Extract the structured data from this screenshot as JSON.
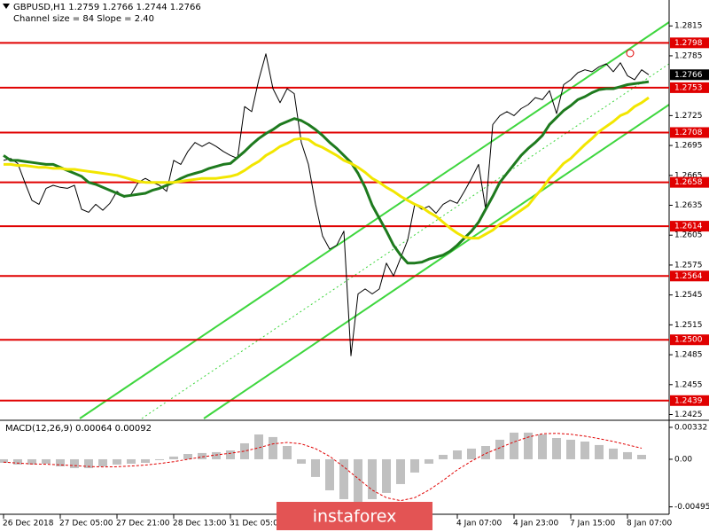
{
  "chart_data": [
    {
      "type": "line",
      "title": "GBPUSD,H1  1.2759 1.2766 1.2744 1.2766",
      "subtitle": "Channel size = 84 Slope = 2.40",
      "categories": [
        "26 Dec 2018",
        null,
        null,
        null,
        null,
        null,
        null,
        null,
        "27 Dec 05:00",
        null,
        null,
        null,
        null,
        null,
        null,
        null,
        "27 Dec 21:00",
        null,
        null,
        null,
        null,
        null,
        null,
        null,
        "28 Dec 13:00",
        null,
        null,
        null,
        null,
        null,
        null,
        null,
        "31 Dec 05:00",
        null,
        null,
        null,
        null,
        null,
        null,
        null,
        null,
        null,
        null,
        null,
        null,
        null,
        null,
        null,
        null,
        null,
        null,
        null,
        null,
        null,
        null,
        null,
        null,
        null,
        null,
        null,
        null,
        null,
        null,
        null,
        "4 Jan 07:00",
        null,
        null,
        null,
        null,
        null,
        null,
        null,
        "4 Jan 23:00",
        null,
        null,
        null,
        null,
        null,
        null,
        null,
        "7 Jan 15:00",
        null,
        null,
        null,
        null,
        null,
        null,
        null,
        "8 Jan 07:00",
        null,
        null,
        null
      ],
      "series": [
        {
          "color": "#000000",
          "width": 1,
          "values": [
            1.268,
            1.2682,
            1.2677,
            1.2658,
            1.264,
            1.2636,
            1.2652,
            1.2655,
            1.2653,
            1.2652,
            1.2655,
            1.2631,
            1.2628,
            1.2636,
            1.263,
            1.2637,
            1.2649,
            1.2643,
            1.2646,
            1.2658,
            1.2662,
            1.2658,
            1.2655,
            1.2649,
            1.268,
            1.2676,
            1.2689,
            1.2698,
            1.2694,
            1.2698,
            1.2694,
            1.2689,
            1.2685,
            1.2682,
            1.2734,
            1.2729,
            1.2761,
            1.2787,
            1.2752,
            1.2738,
            1.2752,
            1.2747,
            1.2698,
            1.2676,
            1.2636,
            1.2604,
            1.2591,
            1.2595,
            1.2609,
            1.2484,
            1.2546,
            1.2551,
            1.2546,
            1.2551,
            1.2577,
            1.2564,
            1.2582,
            1.26,
            1.2636,
            1.2631,
            1.2634,
            1.2627,
            1.2636,
            1.264,
            1.2637,
            1.2649,
            1.2662,
            1.2676,
            1.2631,
            1.2716,
            1.2725,
            1.2729,
            1.2725,
            1.2732,
            1.2736,
            1.2743,
            1.2741,
            1.275,
            1.2727,
            1.2756,
            1.2761,
            1.2768,
            1.2771,
            1.2769,
            1.2774,
            1.2777,
            1.2769,
            1.2778,
            1.2765,
            1.2761,
            1.2771,
            1.2766
          ]
        },
        {
          "color": "#1e7a1e",
          "width": 3,
          "values": [
            1.2685,
            1.268,
            1.268,
            1.2679,
            1.2678,
            1.2677,
            1.2676,
            1.2676,
            1.2673,
            1.267,
            1.2667,
            1.2664,
            1.2658,
            1.2656,
            1.2653,
            1.265,
            1.2647,
            1.2644,
            1.2645,
            1.2646,
            1.2647,
            1.265,
            1.2652,
            1.2655,
            1.2658,
            1.2662,
            1.2665,
            1.2667,
            1.2669,
            1.2672,
            1.2674,
            1.2676,
            1.2677,
            1.2683,
            1.2689,
            1.2696,
            1.2702,
            1.2707,
            1.2711,
            1.2716,
            1.2719,
            1.2722,
            1.272,
            1.2716,
            1.2711,
            1.2705,
            1.2698,
            1.2692,
            1.2685,
            1.2678,
            1.2667,
            1.2653,
            1.2635,
            1.2622,
            1.2609,
            1.2595,
            1.2585,
            1.2577,
            1.2577,
            1.2578,
            1.2581,
            1.2583,
            1.2585,
            1.2589,
            1.2595,
            1.2602,
            1.2609,
            1.2618,
            1.2631,
            1.2644,
            1.2658,
            1.2667,
            1.2676,
            1.2685,
            1.2692,
            1.2698,
            1.2705,
            1.2716,
            1.2723,
            1.273,
            1.2735,
            1.2741,
            1.2744,
            1.2748,
            1.2751,
            1.2752,
            1.2752,
            1.2754,
            1.2756,
            1.2757,
            1.2758,
            1.2759
          ]
        },
        {
          "color": "#f2e600",
          "width": 3,
          "values": [
            1.2676,
            1.2676,
            1.2675,
            1.2675,
            1.2674,
            1.2673,
            1.2673,
            1.2672,
            1.2672,
            1.2671,
            1.2671,
            1.267,
            1.2669,
            1.2668,
            1.2667,
            1.2666,
            1.2665,
            1.2663,
            1.2661,
            1.2659,
            1.2658,
            1.2658,
            1.2658,
            1.2658,
            1.2658,
            1.2659,
            1.266,
            1.2661,
            1.2662,
            1.2662,
            1.2662,
            1.2663,
            1.2664,
            1.2666,
            1.267,
            1.2675,
            1.2679,
            1.2685,
            1.2689,
            1.2694,
            1.2697,
            1.2701,
            1.2702,
            1.2701,
            1.2696,
            1.2693,
            1.2689,
            1.2685,
            1.268,
            1.2677,
            1.2673,
            1.2668,
            1.2662,
            1.2658,
            1.2653,
            1.2649,
            1.2644,
            1.264,
            1.2636,
            1.2633,
            1.2628,
            1.2624,
            1.2618,
            1.2612,
            1.2607,
            1.2603,
            1.2602,
            1.2602,
            1.2606,
            1.261,
            1.2616,
            1.262,
            1.2625,
            1.263,
            1.2635,
            1.2644,
            1.2652,
            1.2662,
            1.2669,
            1.2677,
            1.2682,
            1.2689,
            1.2696,
            1.2702,
            1.2709,
            1.2714,
            1.2719,
            1.2725,
            1.2728,
            1.2734,
            1.2738,
            1.2743
          ]
        }
      ],
      "ylim": [
        1.2421,
        1.2841
      ],
      "yticks": [
        1.2815,
        1.2785,
        1.2725,
        1.2695,
        1.2665,
        1.2635,
        1.2605,
        1.2575,
        1.2545,
        1.2515,
        1.2485,
        1.2455,
        1.2425
      ],
      "levels": [
        1.2798,
        1.2753,
        1.2708,
        1.2658,
        1.2614,
        1.2564,
        {
          "value": 1.25,
          "label": "1.2500"
        },
        1.2439
      ],
      "level_color": "#e00000"
    },
    {
      "type": "bar",
      "title": "MACD(12,26,9) 0.00064 0.00092",
      "color": "#c0c0c0",
      "values": [
        -0.00037,
        -0.00055,
        -0.00055,
        -0.00046,
        -0.00074,
        -0.00092,
        -0.00092,
        -0.00074,
        -0.00055,
        -0.00046,
        -0.00037,
        -9e-05,
        0.00028,
        0.00055,
        0.00065,
        0.00074,
        0.00092,
        0.00166,
        0.00258,
        0.00231,
        0.00138,
        -0.00046,
        -0.00184,
        -0.00323,
        -0.00415,
        -0.00443,
        -0.00415,
        -0.0035,
        -0.00258,
        -0.00138,
        -0.00046,
        0.00046,
        0.00092,
        0.00111,
        0.00138,
        0.00203,
        0.00277,
        0.00277,
        0.00258,
        0.00221,
        0.00203,
        0.00184,
        0.00148,
        0.00111,
        0.00074,
        0.00046
      ],
      "signal": {
        "color": "#e00000",
        "values": [
          -0.0003,
          -0.0004,
          -0.00048,
          -0.00052,
          -0.00058,
          -0.00066,
          -0.00075,
          -0.0008,
          -0.00078,
          -0.0007,
          -0.0006,
          -0.00045,
          -0.00025,
          0.0,
          0.00025,
          0.00045,
          0.00062,
          0.00085,
          0.0012,
          0.0016,
          0.00175,
          0.0016,
          0.0011,
          0.0003,
          -0.0008,
          -0.002,
          -0.0032,
          -0.004,
          -0.0043,
          -0.004,
          -0.0032,
          -0.0022,
          -0.0011,
          -0.0002,
          0.0006,
          0.0012,
          0.0018,
          0.0023,
          0.00265,
          0.0027,
          0.0026,
          0.0024,
          0.00215,
          0.00185,
          0.0015,
          0.00115
        ]
      },
      "ylim": [
        -0.00572,
        0.00387
      ],
      "yticks": [
        0.00332,
        {
          "value": 0,
          "label": "0.00"
        },
        -0.00495
      ]
    }
  ],
  "logo": "instaforex"
}
